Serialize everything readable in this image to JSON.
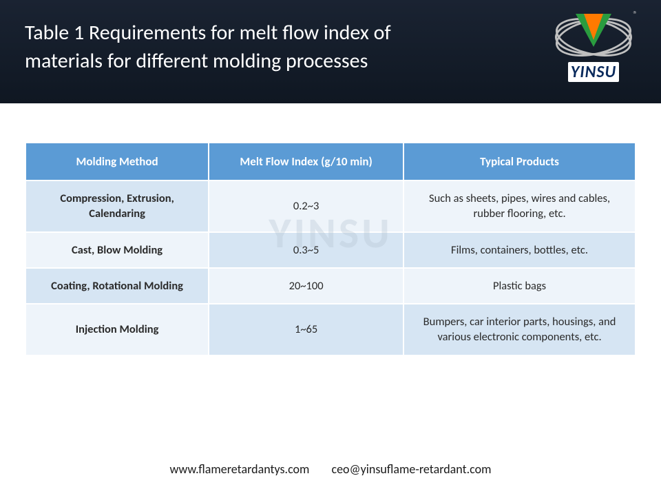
{
  "header": {
    "title": "Table 1 Requirements for melt flow index of materials for different molding processes",
    "brand_name": "YINSU",
    "reg_mark": "®"
  },
  "table": {
    "watermark": "YINSU",
    "columns": [
      "Molding Method",
      "Melt Flow Index (g/10 min)",
      "Typical Products"
    ],
    "rows": [
      [
        "Compression, Extrusion, Calendaring",
        "0.2~3",
        "Such as sheets, pipes, wires and cables, rubber flooring, etc."
      ],
      [
        "Cast, Blow Molding",
        "0.3~5",
        "Films, containers, bottles, etc."
      ],
      [
        "Coating, Rotational Molding",
        "20~100",
        "Plastic bags"
      ],
      [
        "Injection Molding",
        "1~65",
        "Bumpers, car interior parts, housings, and various electronic components, etc."
      ]
    ],
    "header_bg": "#5b9bd5",
    "row_odd_bg": "#eef4fa",
    "row_even_bg": "#d6e5f3"
  },
  "footer": {
    "website": "www.flameretardantys.com",
    "email": "ceo@yinsuflame-retardant.com"
  }
}
